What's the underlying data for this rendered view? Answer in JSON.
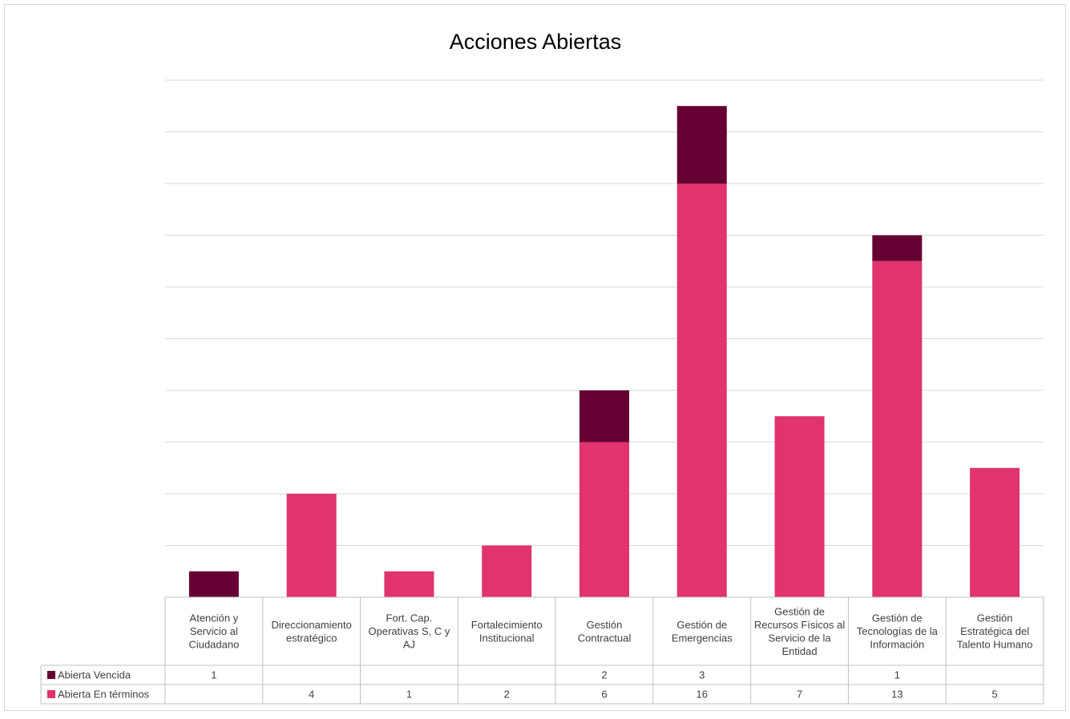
{
  "chart_data": {
    "type": "bar",
    "stacked": true,
    "title": "Acciones Abiertas",
    "categories": [
      "Atención y Servicio al Ciudadano",
      "Direccionamiento estratégico",
      "Fort. Cap. Operativas S, C y AJ",
      "Fortalecimiento Institucional",
      "Gestión Contractual",
      "Gestión de Emergencias",
      "Gestión de Recursos Físicos al Servicio de la Entidad",
      "Gestión de Tecnologías de la Información",
      "Gestión Estratégica del Talento Humano"
    ],
    "category_lines": [
      [
        "Atención y",
        "Servicio al",
        "Ciudadano"
      ],
      [
        "Direccionamiento",
        "estratégico"
      ],
      [
        "Fort. Cap.",
        "Operativas S, C y",
        "AJ"
      ],
      [
        "Fortalecimiento",
        "Institucional"
      ],
      [
        "Gestión",
        "Contractual"
      ],
      [
        "Gestión de",
        "Emergencias"
      ],
      [
        "Gestión de",
        "Recursos Físicos al",
        "Servicio de la",
        "Entidad"
      ],
      [
        "Gestión de",
        "Tecnologías de la",
        "Información"
      ],
      [
        "Gestión",
        "Estratégica del",
        "Talento Humano"
      ]
    ],
    "series": [
      {
        "name": "Abierta En términos",
        "color": "#e0336f",
        "values": [
          null,
          4,
          1,
          2,
          6,
          16,
          7,
          13,
          5
        ]
      },
      {
        "name": "Abierta Vencida",
        "color": "#660033",
        "values": [
          1,
          null,
          null,
          null,
          2,
          3,
          null,
          1,
          null
        ]
      }
    ],
    "table_row_order": [
      "Abierta Vencida",
      "Abierta En términos"
    ],
    "ylim": [
      0,
      20
    ],
    "y_axis_labels_shown": false,
    "grid": true,
    "legend": "data table"
  }
}
